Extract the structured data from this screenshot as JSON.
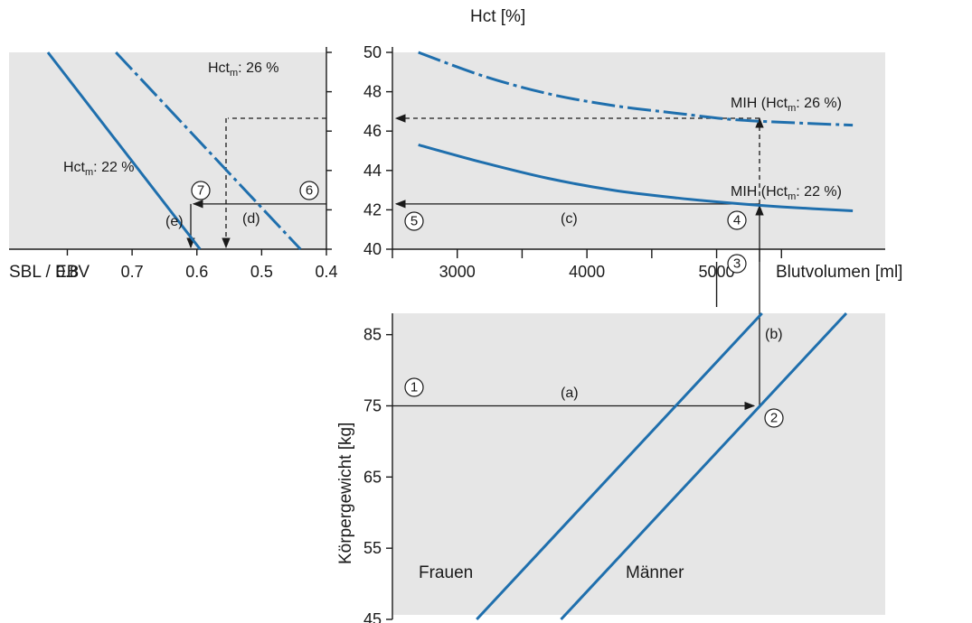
{
  "chart_data": [
    {
      "panel": "blood-volume-vs-weight",
      "type": "line",
      "xlabel": "Blutvolumen [ml]",
      "ylabel": "Körpergewicht [kg]",
      "xlim": [
        2500,
        6300
      ],
      "ylim": [
        45,
        88
      ],
      "x_ticks": [
        3000,
        4000,
        5000
      ],
      "y_ticks": [
        45,
        55,
        65,
        75,
        85
      ],
      "series": [
        {
          "name": "Frauen",
          "x": [
            3150,
            5350
          ],
          "y": [
            45,
            88
          ]
        },
        {
          "name": "Männer",
          "x": [
            3800,
            6000
          ],
          "y": [
            45,
            88
          ]
        }
      ]
    },
    {
      "panel": "hct-vs-blood-volume",
      "type": "line",
      "ylabel": "Hct [%]",
      "xlim": [
        2500,
        6300
      ],
      "ylim": [
        40,
        50
      ],
      "x_ticks": [
        3000,
        4000,
        5000
      ],
      "y_ticks": [
        40,
        42,
        44,
        46,
        48,
        50
      ],
      "series": [
        {
          "name": "MIH (Hct: 26 %)",
          "style": "dash-dot",
          "x": [
            2700,
            3200,
            3700,
            4200,
            4700,
            5100,
            5500,
            6050
          ],
          "y": [
            50.0,
            48.8,
            47.9,
            47.3,
            46.9,
            46.6,
            46.45,
            46.3
          ]
        },
        {
          "name": "MIH (Hct: 22 %)",
          "style": "solid",
          "x": [
            2700,
            3200,
            3700,
            4200,
            4700,
            5100,
            5500,
            6050
          ],
          "y": [
            45.3,
            44.4,
            43.6,
            43.0,
            42.6,
            42.35,
            42.15,
            41.95
          ]
        }
      ]
    },
    {
      "panel": "hct-vs-sbl-ebv",
      "type": "line",
      "xlabel": "SBL / EBV",
      "xlim": [
        0.4,
        0.89
      ],
      "ylim": [
        40,
        50
      ],
      "x_reversed": true,
      "x_ticks": [
        0.8,
        0.7,
        0.6,
        0.5,
        0.4
      ],
      "x_tick_labels": [
        "0.8",
        "0.7",
        "0.6",
        "0.5",
        "0.4"
      ],
      "series": [
        {
          "name": "Hct: 22 %",
          "style": "solid",
          "x": [
            0.83,
            0.595
          ],
          "y": [
            50,
            40
          ]
        },
        {
          "name": "Hct: 26 %",
          "style": "dash-dot",
          "x": [
            0.725,
            0.44
          ],
          "y": [
            50,
            40
          ]
        }
      ]
    }
  ],
  "text": {
    "hct_axis_title": "Hct [%]",
    "blutvolumen_title": "Blutvolumen [ml]",
    "koerpergewicht_title": "Körpergewicht [kg]",
    "sbl_ebv_title": "SBL / EBV",
    "frauen": "Frauen",
    "maenner": "Männer",
    "mih26_pre": "MIH (Hct",
    "mih26_sub": "m",
    "mih26_post": ": 26 %)",
    "mih22_pre": "MIH (Hct",
    "mih22_sub": "m",
    "mih22_post": ": 22 %)",
    "left26_pre": "Hct",
    "left26_sub": "m",
    "left26_post": ": 26 %",
    "left22_pre": "Hct",
    "left22_sub": "m",
    "left22_post": ": 22 %",
    "step_a": "(a)",
    "step_b": "(b)",
    "step_c": "(c)",
    "step_d": "(d)",
    "step_e": "(e)"
  },
  "markers": [
    "1",
    "2",
    "3",
    "4",
    "5",
    "6",
    "7"
  ],
  "colors": {
    "curve": "#1f6fad",
    "panel": "#e6e6e6",
    "ink": "#1a1a1a"
  }
}
